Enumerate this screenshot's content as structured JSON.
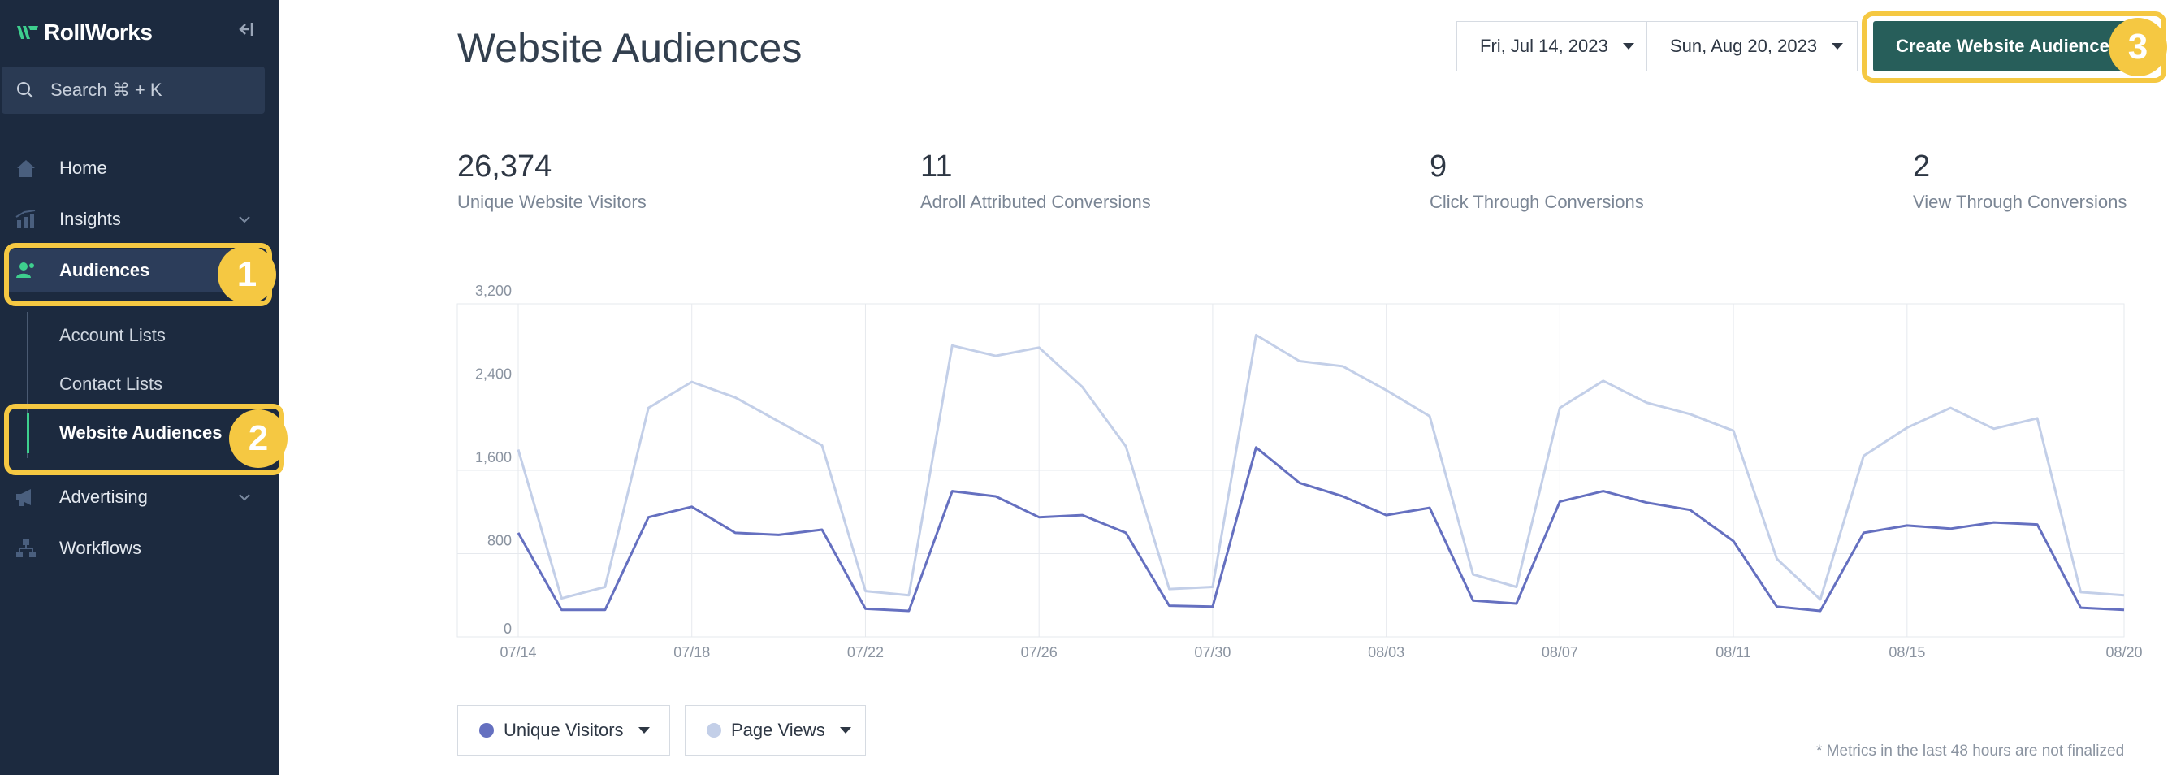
{
  "sidebar": {
    "logo": "RollWorks",
    "search_label": "Search ⌘ + K",
    "nav": {
      "home": "Home",
      "insights": "Insights",
      "audiences": "Audiences",
      "advertising": "Advertising",
      "workflows": "Workflows"
    },
    "sub": {
      "account_lists": "Account Lists",
      "contact_lists": "Contact Lists",
      "website_audiences": "Website Audiences"
    },
    "accent_color": "#3ecf8e"
  },
  "annotations": {
    "badge1": "1",
    "badge2": "2",
    "badge3": "3",
    "color": "#f5c842"
  },
  "header": {
    "title": "Website Audiences",
    "start_date": "Fri, Jul 14, 2023",
    "end_date": "Sun, Aug 20, 2023",
    "create_button": "Create Website Audience",
    "create_button_color": "#275e5a"
  },
  "stats": [
    {
      "value": "26,374",
      "label": "Unique Website Visitors"
    },
    {
      "value": "11",
      "label": "Adroll Attributed Conversions"
    },
    {
      "value": "9",
      "label": "Click Through Conversions"
    },
    {
      "value": "2",
      "label": "View Through Conversions"
    }
  ],
  "chart_data": {
    "type": "line",
    "title": "",
    "xlabel": "",
    "ylabel": "",
    "ylim": [
      0,
      3200
    ],
    "yticks": [
      0,
      800,
      1600,
      2400,
      3200
    ],
    "ytick_labels": [
      "0",
      "800",
      "1,600",
      "2,400",
      "3,200"
    ],
    "xtick_labels": [
      "07/14",
      "07/18",
      "07/22",
      "07/26",
      "07/30",
      "08/03",
      "08/07",
      "08/11",
      "08/15",
      "08/20"
    ],
    "xtick_days": [
      0,
      4,
      8,
      12,
      16,
      20,
      24,
      28,
      32,
      37
    ],
    "grid": true,
    "series": [
      {
        "name": "Unique Visitors",
        "color": "#6570c0",
        "values": [
          1000,
          260,
          260,
          1150,
          1250,
          1000,
          980,
          1030,
          270,
          250,
          1400,
          1350,
          1150,
          1170,
          1000,
          300,
          290,
          1820,
          1480,
          1350,
          1170,
          1240,
          350,
          320,
          1300,
          1400,
          1290,
          1220,
          920,
          290,
          250,
          1000,
          1070,
          1040,
          1100,
          1080,
          280,
          260
        ]
      },
      {
        "name": "Page Views",
        "color": "#c3cfe8",
        "values": [
          1800,
          370,
          480,
          2200,
          2450,
          2300,
          2070,
          1840,
          440,
          400,
          2800,
          2700,
          2780,
          2400,
          1830,
          460,
          480,
          2900,
          2650,
          2600,
          2370,
          2120,
          600,
          480,
          2200,
          2460,
          2250,
          2140,
          1980,
          750,
          360,
          1740,
          2010,
          2200,
          2000,
          2100,
          430,
          400
        ]
      }
    ]
  },
  "legend": {
    "unique_visitors": "Unique Visitors",
    "page_views": "Page Views"
  },
  "footnote": "* Metrics in the last 48 hours are not finalized"
}
